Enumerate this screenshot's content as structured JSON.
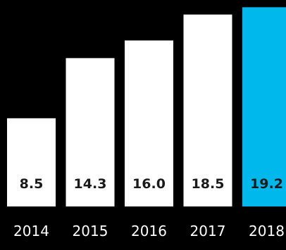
{
  "chart_data": {
    "type": "bar",
    "categories": [
      "2014",
      "2015",
      "2016",
      "2017",
      "2018"
    ],
    "values": [
      8.5,
      14.3,
      16.0,
      18.5,
      19.2
    ],
    "value_labels": [
      "8.5",
      "14.3",
      "16.0",
      "18.5",
      "19.2"
    ],
    "ylim": [
      0,
      19.9
    ],
    "grid": false,
    "colors": {
      "background": "#000000",
      "bar": "#ffffff",
      "highlight_bar": "#00b8ec",
      "value_text": "#1a1a1a",
      "category_text": "#ffffff"
    },
    "highlight_category": "2018"
  }
}
